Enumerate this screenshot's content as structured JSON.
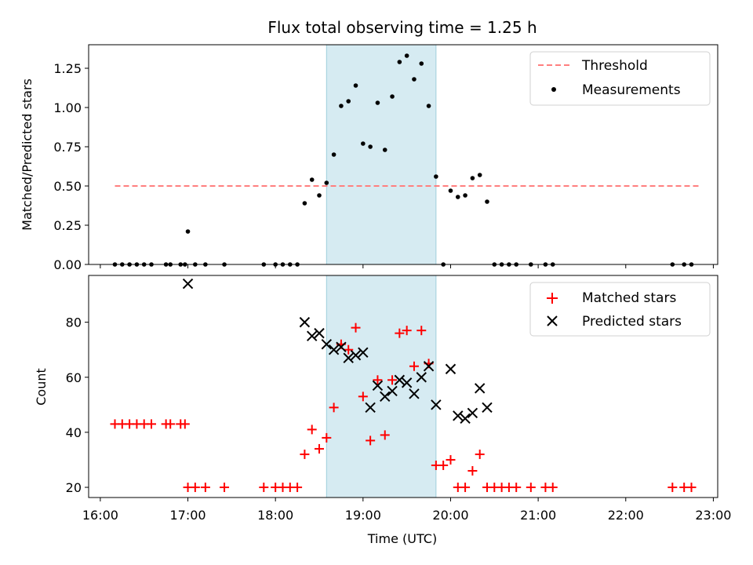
{
  "title": "Flux total observing time = 1.25 h",
  "colors": {
    "threshold": "#ff7f7f",
    "matched": "#ff0000",
    "predicted": "#000000",
    "measurement": "#000000",
    "band": "#add8e6"
  },
  "chart_data": [
    {
      "type": "scatter",
      "panel": "top",
      "ylabel": "Matched/Predicted stars",
      "xlabel": "",
      "ylim": [
        0,
        1.4
      ],
      "y_ticks": [
        "0.00",
        "0.25",
        "0.50",
        "0.75",
        "1.00",
        "1.25"
      ],
      "shaded_band": [
        "18:35",
        "19:50"
      ],
      "legend": [
        "Threshold",
        "Measurements"
      ],
      "legend_position": "top-right",
      "threshold": {
        "name": "Threshold",
        "y": 0.5,
        "x": [
          "16:10",
          "22:50"
        ]
      },
      "series": [
        {
          "name": "Measurements",
          "points": [
            [
              "16:10",
              0
            ],
            [
              "16:15",
              0
            ],
            [
              "16:20",
              0
            ],
            [
              "16:25",
              0
            ],
            [
              "16:30",
              0
            ],
            [
              "16:35",
              0
            ],
            [
              "16:45",
              0
            ],
            [
              "16:48",
              0
            ],
            [
              "16:55",
              0
            ],
            [
              "16:58",
              0
            ],
            [
              "17:00",
              0.21
            ],
            [
              "17:05",
              0
            ],
            [
              "17:12",
              0
            ],
            [
              "17:25",
              0
            ],
            [
              "17:52",
              0
            ],
            [
              "18:00",
              0
            ],
            [
              "18:05",
              0
            ],
            [
              "18:10",
              0
            ],
            [
              "18:15",
              0
            ],
            [
              "18:20",
              0.39
            ],
            [
              "18:25",
              0.54
            ],
            [
              "18:30",
              0.44
            ],
            [
              "18:35",
              0.52
            ],
            [
              "18:40",
              0.7
            ],
            [
              "18:45",
              1.01
            ],
            [
              "18:50",
              1.04
            ],
            [
              "18:55",
              1.14
            ],
            [
              "19:00",
              0.77
            ],
            [
              "19:05",
              0.75
            ],
            [
              "19:10",
              1.03
            ],
            [
              "19:15",
              0.73
            ],
            [
              "19:20",
              1.07
            ],
            [
              "19:25",
              1.29
            ],
            [
              "19:30",
              1.33
            ],
            [
              "19:35",
              1.18
            ],
            [
              "19:40",
              1.28
            ],
            [
              "19:45",
              1.01
            ],
            [
              "19:50",
              0.56
            ],
            [
              "19:55",
              0
            ],
            [
              "20:00",
              0.47
            ],
            [
              "20:05",
              0.43
            ],
            [
              "20:10",
              0.44
            ],
            [
              "20:15",
              0.55
            ],
            [
              "20:20",
              0.57
            ],
            [
              "20:25",
              0.4
            ],
            [
              "20:30",
              0
            ],
            [
              "20:35",
              0
            ],
            [
              "20:40",
              0
            ],
            [
              "20:45",
              0
            ],
            [
              "20:55",
              0
            ],
            [
              "21:05",
              0
            ],
            [
              "21:10",
              0
            ],
            [
              "22:32",
              0
            ],
            [
              "22:40",
              0
            ],
            [
              "22:45",
              0
            ]
          ]
        }
      ]
    },
    {
      "type": "scatter",
      "panel": "bottom",
      "ylabel": "Count",
      "xlabel": "Time (UTC)",
      "ylim": [
        16.3,
        97
      ],
      "y_ticks": [
        "20",
        "40",
        "60",
        "80"
      ],
      "x_ticks": [
        "16:00",
        "17:00",
        "18:00",
        "19:00",
        "20:00",
        "21:00",
        "22:00",
        "23:00"
      ],
      "xlim": [
        "15:52",
        "23:03"
      ],
      "shaded_band": [
        "18:35",
        "19:50"
      ],
      "legend": [
        "Matched stars",
        "Predicted stars"
      ],
      "legend_position": "top-right",
      "series": [
        {
          "name": "Matched stars",
          "marker": "plus",
          "points": [
            [
              "16:10",
              43
            ],
            [
              "16:15",
              43
            ],
            [
              "16:20",
              43
            ],
            [
              "16:25",
              43
            ],
            [
              "16:30",
              43
            ],
            [
              "16:35",
              43
            ],
            [
              "16:45",
              43
            ],
            [
              "16:48",
              43
            ],
            [
              "16:55",
              43
            ],
            [
              "16:58",
              43
            ],
            [
              "17:00",
              20
            ],
            [
              "17:05",
              20
            ],
            [
              "17:12",
              20
            ],
            [
              "17:25",
              20
            ],
            [
              "17:52",
              20
            ],
            [
              "18:00",
              20
            ],
            [
              "18:05",
              20
            ],
            [
              "18:10",
              20
            ],
            [
              "18:15",
              20
            ],
            [
              "18:20",
              32
            ],
            [
              "18:25",
              41
            ],
            [
              "18:30",
              34
            ],
            [
              "18:35",
              38
            ],
            [
              "18:40",
              49
            ],
            [
              "18:45",
              72
            ],
            [
              "18:50",
              70
            ],
            [
              "18:55",
              78
            ],
            [
              "19:00",
              53
            ],
            [
              "19:05",
              37
            ],
            [
              "19:10",
              59
            ],
            [
              "19:15",
              39
            ],
            [
              "19:20",
              59
            ],
            [
              "19:25",
              76
            ],
            [
              "19:30",
              77
            ],
            [
              "19:35",
              64
            ],
            [
              "19:40",
              77
            ],
            [
              "19:45",
              65
            ],
            [
              "19:50",
              28
            ],
            [
              "19:55",
              28
            ],
            [
              "20:00",
              30
            ],
            [
              "20:05",
              20
            ],
            [
              "20:10",
              20
            ],
            [
              "20:15",
              26
            ],
            [
              "20:20",
              32
            ],
            [
              "20:25",
              20
            ],
            [
              "20:30",
              20
            ],
            [
              "20:35",
              20
            ],
            [
              "20:40",
              20
            ],
            [
              "20:45",
              20
            ],
            [
              "20:55",
              20
            ],
            [
              "21:05",
              20
            ],
            [
              "21:10",
              20
            ],
            [
              "22:32",
              20
            ],
            [
              "22:40",
              20
            ],
            [
              "22:45",
              20
            ]
          ]
        },
        {
          "name": "Predicted stars",
          "marker": "x",
          "points": [
            [
              "17:00",
              94
            ],
            [
              "18:20",
              80
            ],
            [
              "18:25",
              75
            ],
            [
              "18:30",
              76
            ],
            [
              "18:35",
              72
            ],
            [
              "18:40",
              70
            ],
            [
              "18:45",
              71
            ],
            [
              "18:50",
              67
            ],
            [
              "18:55",
              68
            ],
            [
              "19:00",
              69
            ],
            [
              "19:05",
              49
            ],
            [
              "19:10",
              57
            ],
            [
              "19:15",
              53
            ],
            [
              "19:20",
              55
            ],
            [
              "19:25",
              59
            ],
            [
              "19:30",
              58
            ],
            [
              "19:35",
              54
            ],
            [
              "19:40",
              60
            ],
            [
              "19:45",
              64
            ],
            [
              "19:50",
              50
            ],
            [
              "20:00",
              63
            ],
            [
              "20:05",
              46
            ],
            [
              "20:10",
              45
            ],
            [
              "20:15",
              47
            ],
            [
              "20:20",
              56
            ],
            [
              "20:25",
              49
            ]
          ]
        }
      ]
    }
  ]
}
